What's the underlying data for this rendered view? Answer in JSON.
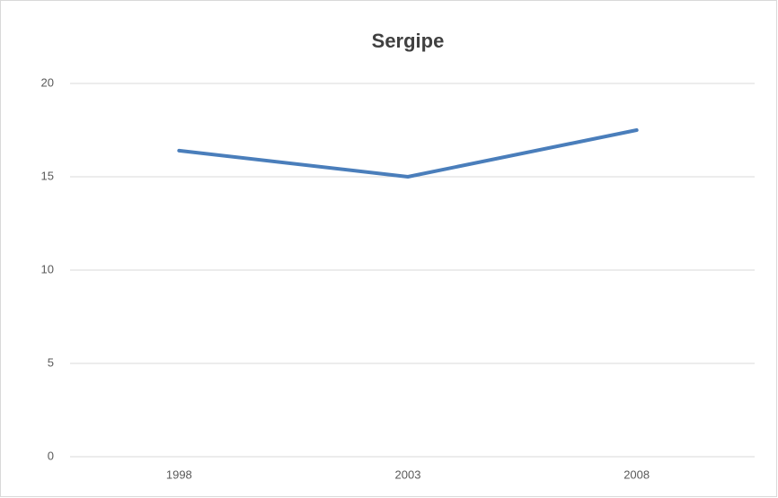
{
  "chart_data": {
    "type": "line",
    "title": "Sergipe",
    "categories": [
      "1998",
      "2003",
      "2008"
    ],
    "values": [
      16.4,
      15.0,
      17.5
    ],
    "color": "#4a7ebb",
    "ylim": [
      0,
      20
    ],
    "yticks": [
      0,
      5,
      10,
      15,
      20
    ],
    "grid": true
  }
}
